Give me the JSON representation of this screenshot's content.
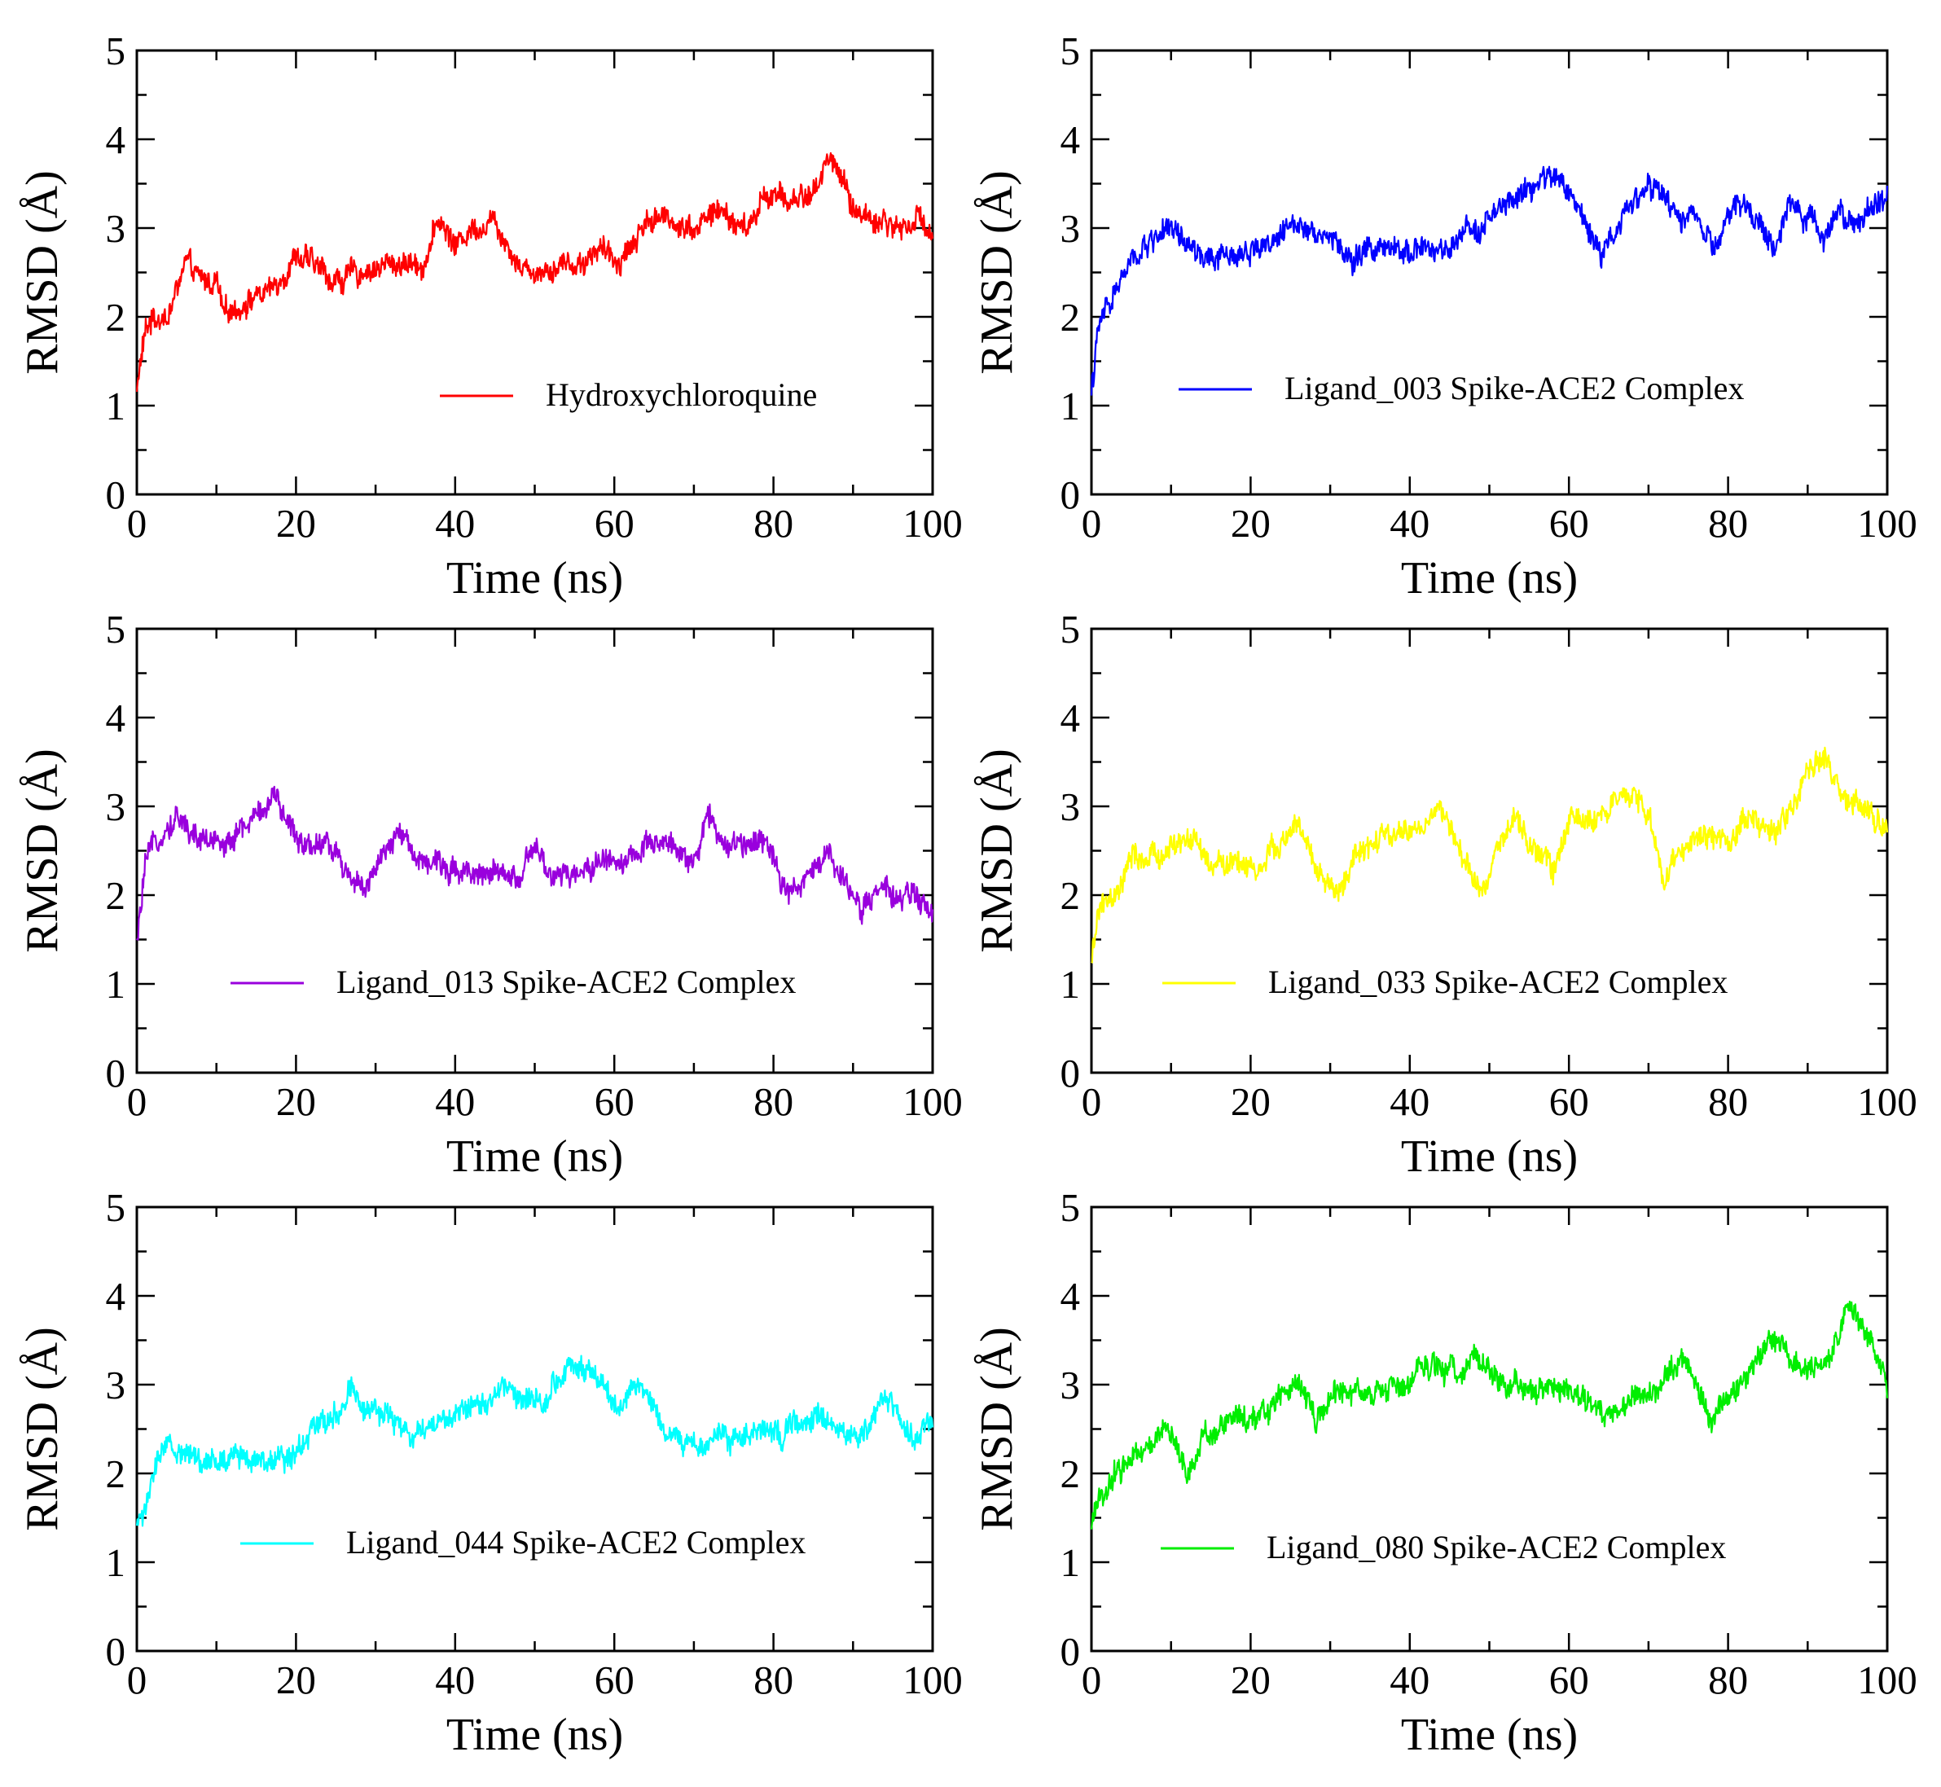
{
  "chart_data": [
    {
      "type": "line",
      "xlabel": "Time (ns)",
      "ylabel": "RMSD (Å)",
      "xlim": [
        0,
        100
      ],
      "ylim": [
        0,
        5
      ],
      "xticks": [
        "0",
        "20",
        "40",
        "60",
        "80",
        "100"
      ],
      "yticks": [
        "0",
        "1",
        "2",
        "3",
        "4",
        "5"
      ],
      "legend_placement": "lower-right",
      "series": [
        {
          "name": "Hydroxychloroquine",
          "color": "#ff0000",
          "x": [
            0,
            1,
            2,
            4,
            6,
            8,
            10,
            11,
            14,
            17,
            20,
            22,
            25,
            28,
            32,
            36,
            38,
            40,
            42,
            45,
            48,
            50,
            53,
            56,
            58,
            60,
            63,
            64,
            67,
            70,
            73,
            76,
            77,
            79,
            82,
            85,
            87,
            88,
            90,
            93,
            96,
            98,
            100
          ],
          "y": [
            1.2,
            1.8,
            2.0,
            2.0,
            2.6,
            2.4,
            2.4,
            2.0,
            2.2,
            2.3,
            2.7,
            2.6,
            2.4,
            2.5,
            2.6,
            2.6,
            3.1,
            2.8,
            3.0,
            3.1,
            2.6,
            2.5,
            2.6,
            2.6,
            2.8,
            2.6,
            2.9,
            3.1,
            3.1,
            3.0,
            3.2,
            3.0,
            3.0,
            3.4,
            3.3,
            3.4,
            3.8,
            3.7,
            3.2,
            3.1,
            3.0,
            3.1,
            3.0
          ]
        }
      ]
    },
    {
      "type": "line",
      "xlabel": "Time (ns)",
      "ylabel": "RMSD (Å)",
      "xlim": [
        0,
        100
      ],
      "ylim": [
        0,
        5
      ],
      "xticks": [
        "0",
        "20",
        "40",
        "60",
        "80",
        "100"
      ],
      "yticks": [
        "0",
        "1",
        "2",
        "3",
        "4",
        "5"
      ],
      "legend_placement": "lower-right",
      "series": [
        {
          "name": "Ligand_003 Spike-ACE2 Complex",
          "color": "#0000ff",
          "x": [
            0,
            1,
            3,
            5,
            7,
            9,
            12,
            15,
            18,
            21,
            24,
            26,
            28,
            30,
            33,
            35,
            38,
            41,
            44,
            46,
            48,
            50,
            53,
            56,
            58,
            60,
            62,
            64,
            67,
            70,
            72,
            74,
            76,
            78,
            80,
            82,
            84,
            86,
            88,
            90,
            92,
            94,
            96,
            98,
            100
          ],
          "y": [
            1.2,
            1.9,
            2.3,
            2.6,
            2.8,
            3.0,
            2.8,
            2.6,
            2.7,
            2.8,
            2.9,
            3.1,
            3.0,
            2.9,
            2.6,
            2.8,
            2.7,
            2.8,
            2.7,
            2.8,
            3.0,
            3.1,
            3.3,
            3.5,
            3.6,
            3.4,
            3.1,
            2.7,
            3.2,
            3.5,
            3.3,
            3.1,
            3.2,
            2.7,
            3.1,
            3.3,
            3.0,
            2.8,
            3.3,
            3.1,
            2.9,
            3.3,
            3.0,
            3.2,
            3.4
          ]
        }
      ]
    },
    {
      "type": "line",
      "xlabel": "Time (ns)",
      "ylabel": "RMSD (Å)",
      "xlim": [
        0,
        100
      ],
      "ylim": [
        0,
        5
      ],
      "xticks": [
        "0",
        "20",
        "40",
        "60",
        "80",
        "100"
      ],
      "yticks": [
        "0",
        "1",
        "2",
        "3",
        "4",
        "5"
      ],
      "legend_placement": "lower-right",
      "series": [
        {
          "name": "Ligand_013 Spike-ACE2 Complex",
          "color": "#9900dd",
          "x": [
            0,
            1,
            3,
            5,
            8,
            11,
            14,
            17,
            19,
            21,
            24,
            27,
            29,
            31,
            33,
            36,
            39,
            42,
            45,
            48,
            50,
            52,
            55,
            58,
            61,
            64,
            67,
            70,
            72,
            74,
            77,
            79,
            81,
            83,
            85,
            87,
            89,
            91,
            94,
            97,
            100
          ],
          "y": [
            1.4,
            2.3,
            2.7,
            2.9,
            2.6,
            2.6,
            2.8,
            3.1,
            2.8,
            2.6,
            2.6,
            2.2,
            2.1,
            2.4,
            2.7,
            2.4,
            2.3,
            2.3,
            2.2,
            2.2,
            2.5,
            2.2,
            2.2,
            2.4,
            2.4,
            2.5,
            2.6,
            2.4,
            2.9,
            2.5,
            2.6,
            2.7,
            2.2,
            2.0,
            2.3,
            2.5,
            2.1,
            1.9,
            2.0,
            2.0,
            1.8
          ]
        }
      ]
    },
    {
      "type": "line",
      "xlabel": "Time (ns)",
      "ylabel": "RMSD (Å)",
      "xlim": [
        0,
        100
      ],
      "ylim": [
        0,
        5
      ],
      "xticks": [
        "0",
        "20",
        "40",
        "60",
        "80",
        "100"
      ],
      "yticks": [
        "0",
        "1",
        "2",
        "3",
        "4",
        "5"
      ],
      "legend_placement": "lower-right",
      "series": [
        {
          "name": "Ligand_033 Spike-ACE2 Complex",
          "color": "#ffff00",
          "x": [
            0,
            1,
            3,
            5,
            8,
            11,
            13,
            15,
            18,
            21,
            24,
            26,
            28,
            31,
            33,
            36,
            39,
            42,
            44,
            46,
            49,
            51,
            53,
            56,
            58,
            60,
            63,
            66,
            69,
            71,
            72,
            74,
            77,
            80,
            83,
            86,
            88,
            90,
            92,
            94,
            96,
            98,
            100
          ],
          "y": [
            1.2,
            1.9,
            1.9,
            2.4,
            2.4,
            2.6,
            2.6,
            2.3,
            2.4,
            2.3,
            2.6,
            2.8,
            2.3,
            2.0,
            2.4,
            2.6,
            2.7,
            2.8,
            3.0,
            2.5,
            2.0,
            2.6,
            2.8,
            2.5,
            2.3,
            2.8,
            2.9,
            3.0,
            3.1,
            2.6,
            2.1,
            2.5,
            2.7,
            2.6,
            2.9,
            2.7,
            3.0,
            3.4,
            3.6,
            3.2,
            3.0,
            2.9,
            2.7
          ]
        }
      ]
    },
    {
      "type": "line",
      "xlabel": "Time (ns)",
      "ylabel": "RMSD (Å)",
      "xlim": [
        0,
        100
      ],
      "ylim": [
        0,
        5
      ],
      "xticks": [
        "0",
        "20",
        "40",
        "60",
        "80",
        "100"
      ],
      "yticks": [
        "0",
        "1",
        "2",
        "3",
        "4",
        "5"
      ],
      "legend_placement": "lower-right",
      "series": [
        {
          "name": "Ligand_044 Spike-ACE2 Complex",
          "color": "#00ffff",
          "x": [
            0,
            1,
            2,
            4,
            7,
            10,
            13,
            16,
            19,
            22,
            25,
            27,
            29,
            32,
            35,
            38,
            41,
            44,
            46,
            48,
            51,
            53,
            55,
            57,
            59,
            61,
            63,
            65,
            67,
            69,
            72,
            75,
            78,
            81,
            84,
            86,
            89,
            92,
            94,
            96,
            98,
            100
          ],
          "y": [
            1.4,
            1.6,
            2.0,
            2.3,
            2.2,
            2.1,
            2.2,
            2.2,
            2.2,
            2.5,
            2.7,
            3.0,
            2.7,
            2.6,
            2.4,
            2.6,
            2.7,
            2.8,
            3.0,
            2.9,
            2.8,
            3.1,
            3.2,
            3.1,
            2.9,
            2.7,
            3.0,
            2.8,
            2.4,
            2.3,
            2.4,
            2.4,
            2.5,
            2.4,
            2.6,
            2.7,
            2.4,
            2.5,
            2.9,
            2.6,
            2.4,
            2.5
          ]
        }
      ]
    },
    {
      "type": "line",
      "xlabel": "Time (ns)",
      "ylabel": "RMSD (Å)",
      "xlim": [
        0,
        100
      ],
      "ylim": [
        0,
        5
      ],
      "xticks": [
        "0",
        "20",
        "40",
        "60",
        "80",
        "100"
      ],
      "yticks": [
        "0",
        "1",
        "2",
        "3",
        "4",
        "5"
      ],
      "legend_placement": "lower-right",
      "series": [
        {
          "name": "Ligand_080 Spike-ACE2 Complex",
          "color": "#00ee00",
          "x": [
            0,
            1,
            3,
            5,
            8,
            10,
            12,
            14,
            17,
            20,
            23,
            26,
            28,
            31,
            34,
            37,
            40,
            43,
            46,
            48,
            50,
            53,
            56,
            59,
            62,
            65,
            68,
            70,
            72,
            74,
            76,
            78,
            80,
            83,
            85,
            87,
            89,
            91,
            93,
            95,
            97,
            99,
            100
          ],
          "y": [
            1.4,
            1.7,
            2.0,
            2.2,
            2.4,
            2.5,
            2.0,
            2.4,
            2.6,
            2.6,
            2.8,
            3.1,
            2.6,
            2.9,
            2.9,
            2.9,
            3.0,
            3.2,
            3.1,
            3.4,
            3.1,
            3.0,
            2.9,
            3.0,
            2.8,
            2.7,
            2.8,
            2.9,
            3.1,
            3.3,
            3.0,
            2.6,
            2.9,
            3.2,
            3.5,
            3.4,
            3.2,
            3.2,
            3.3,
            3.9,
            3.6,
            3.3,
            3.0
          ]
        }
      ]
    }
  ]
}
